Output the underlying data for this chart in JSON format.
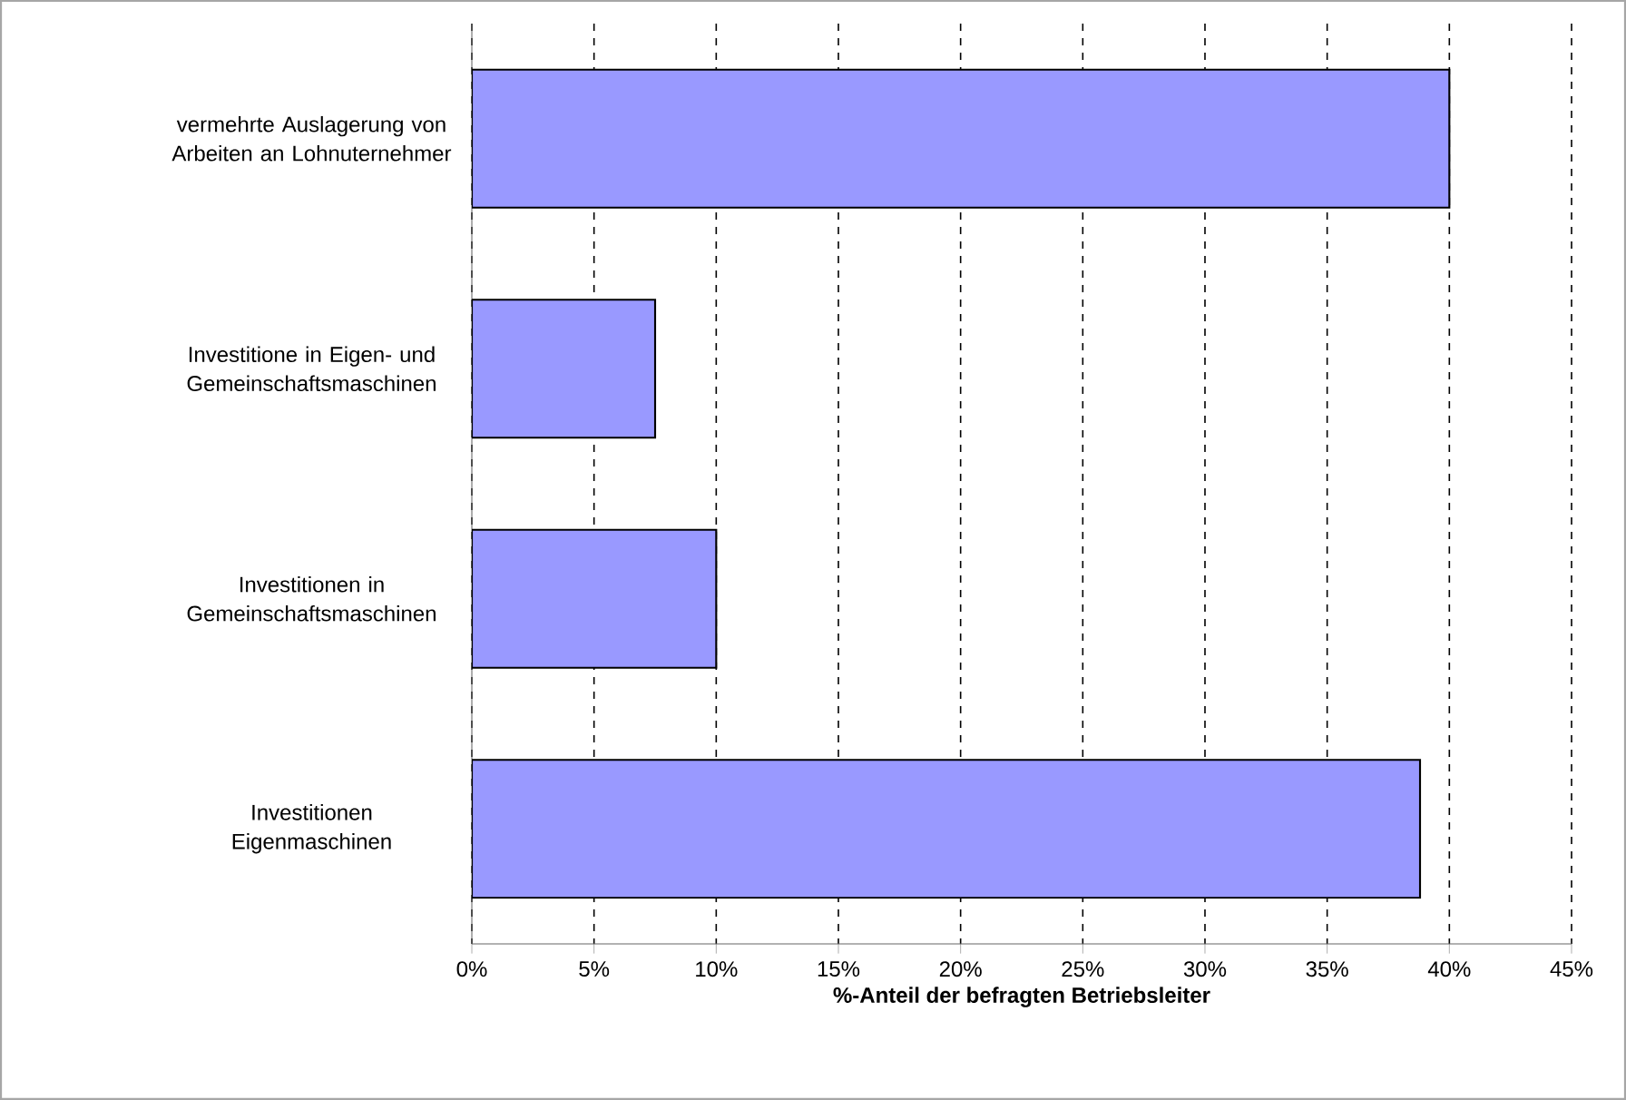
{
  "chart_data": {
    "type": "bar",
    "orientation": "horizontal",
    "xlabel": "%-Anteil der befragten Betriebsleiter",
    "categories": [
      "vermehrte Auslagerung von Arbeiten an Lohnuternehmer",
      "Investitione in Eigen- und Gemeinschaftsmaschinen",
      "Investitionen in Gemeinschaftsmaschinen",
      "Investitionen Eigenmaschinen"
    ],
    "values": [
      40,
      7.5,
      10,
      38.8
    ],
    "color": "#9999ff",
    "xlim": [
      0,
      45
    ],
    "xticks": [
      {
        "value": 0,
        "label": "0%"
      },
      {
        "value": 5,
        "label": "5%"
      },
      {
        "value": 10,
        "label": "10%"
      },
      {
        "value": 15,
        "label": "15%"
      },
      {
        "value": 20,
        "label": "20%"
      },
      {
        "value": 25,
        "label": "25%"
      },
      {
        "value": 30,
        "label": "30%"
      },
      {
        "value": 35,
        "label": "35%"
      },
      {
        "value": 40,
        "label": "40%"
      },
      {
        "value": 45,
        "label": "45%"
      }
    ],
    "grid": "x"
  }
}
